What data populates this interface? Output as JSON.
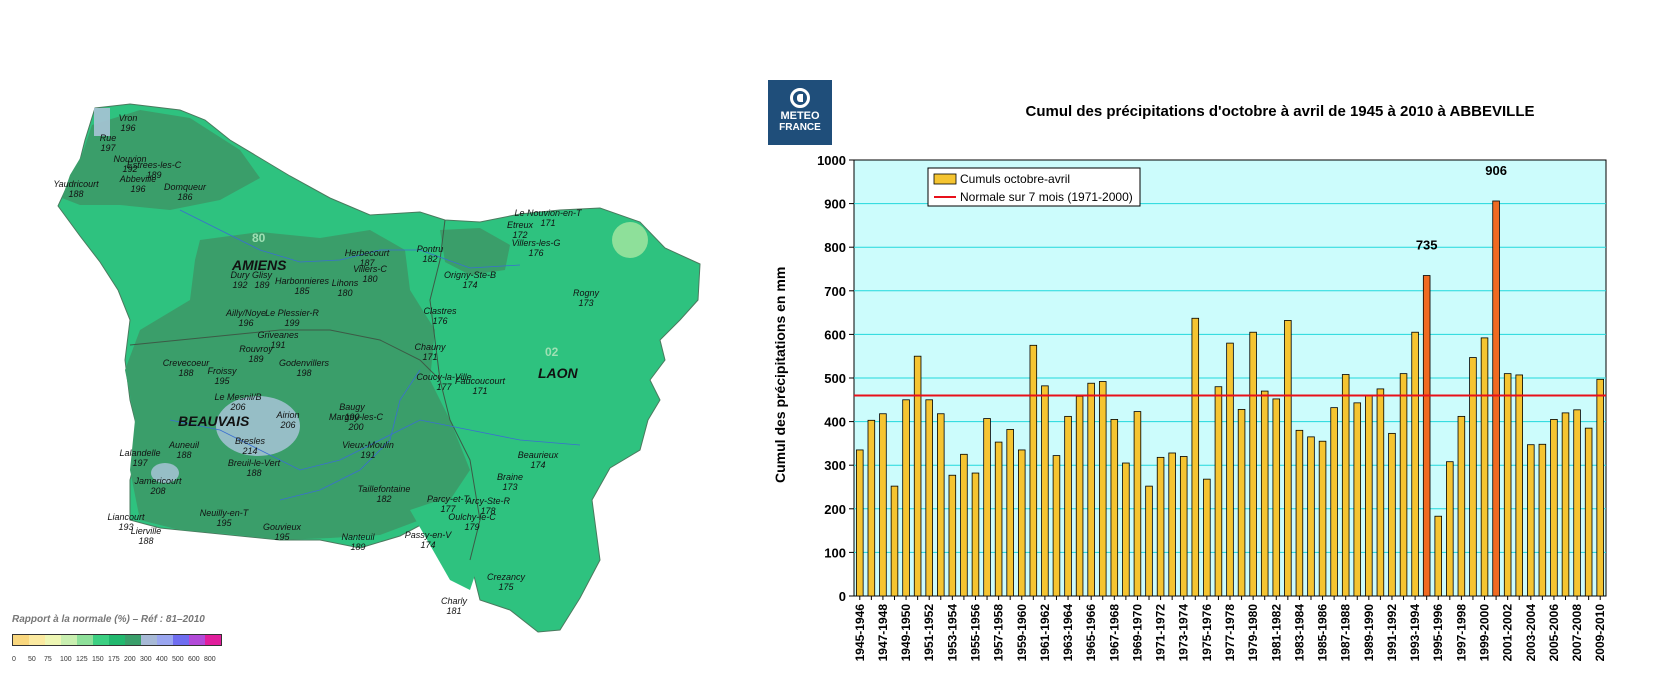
{
  "map": {
    "region_labels": [
      {
        "text": "AMIENS"
      },
      {
        "text": "BEAUVAIS"
      },
      {
        "text": "LAON"
      }
    ],
    "zone_labels": [
      "80",
      "02"
    ],
    "places": [
      {
        "name": "Vron",
        "value": "196"
      },
      {
        "name": "Rue",
        "value": "197"
      },
      {
        "name": "Nouvion",
        "value": "192"
      },
      {
        "name": "Estrees-les-C",
        "value": "189"
      },
      {
        "name": "Abbeville",
        "value": "196"
      },
      {
        "name": "Domqueur",
        "value": "186"
      },
      {
        "name": "Yaudricourt",
        "value": "188"
      },
      {
        "name": "Dury",
        "value": "192"
      },
      {
        "name": "Glisy",
        "value": "189"
      },
      {
        "name": "Harbonnieres",
        "value": "185"
      },
      {
        "name": "Lihons",
        "value": "180"
      },
      {
        "name": "Herbecourt",
        "value": "187"
      },
      {
        "name": "Villers-C",
        "value": "180"
      },
      {
        "name": "Pontru",
        "value": "182"
      },
      {
        "name": "Etreux",
        "value": "172"
      },
      {
        "name": "Le Nouvion-en-T",
        "value": "171"
      },
      {
        "name": "Villers-les-G",
        "value": "176"
      },
      {
        "name": "Origny-Ste-B",
        "value": "174"
      },
      {
        "name": "Rogny",
        "value": "173"
      },
      {
        "name": "Ailly/Noye",
        "value": "196"
      },
      {
        "name": "Le Plessier-R",
        "value": "199"
      },
      {
        "name": "Griveanes",
        "value": "191"
      },
      {
        "name": "Rouvroy",
        "value": "189"
      },
      {
        "name": "Clastres",
        "value": "176"
      },
      {
        "name": "Chauny",
        "value": "171"
      },
      {
        "name": "Crevecoeur",
        "value": "188"
      },
      {
        "name": "Froissy",
        "value": "195"
      },
      {
        "name": "Godenvillers",
        "value": "198"
      },
      {
        "name": "Coucy-la-Ville",
        "value": "177"
      },
      {
        "name": "Faucoucourt",
        "value": "171"
      },
      {
        "name": "Le Mesnil/B",
        "value": "206"
      },
      {
        "name": "Airion",
        "value": "206"
      },
      {
        "name": "Baugy",
        "value": "190"
      },
      {
        "name": "Margny-les-C",
        "value": "200"
      },
      {
        "name": "Bresles",
        "value": "214"
      },
      {
        "name": "Lalandelle",
        "value": "197"
      },
      {
        "name": "Auneuil",
        "value": "188"
      },
      {
        "name": "Breuil-le-Vert",
        "value": "188"
      },
      {
        "name": "Vieux-Moulin",
        "value": "191"
      },
      {
        "name": "Beaurieux",
        "value": "174"
      },
      {
        "name": "Braine",
        "value": "173"
      },
      {
        "name": "Jamericourt",
        "value": "208"
      },
      {
        "name": "Taillefontaine",
        "value": "182"
      },
      {
        "name": "Parcy-et-T",
        "value": "177"
      },
      {
        "name": "Arcy-Ste-R",
        "value": "178"
      },
      {
        "name": "Oulchy-le-C",
        "value": "179"
      },
      {
        "name": "Neuilly-en-T",
        "value": "195"
      },
      {
        "name": "Liancourt",
        "value": "193"
      },
      {
        "name": "Lierville",
        "value": "188"
      },
      {
        "name": "Gouvieux",
        "value": "195"
      },
      {
        "name": "Nanteuil",
        "value": "189"
      },
      {
        "name": "Passy-en-V",
        "value": "174"
      },
      {
        "name": "Crezancy",
        "value": "175"
      },
      {
        "name": "Charly",
        "value": "181"
      }
    ],
    "legend": {
      "caption": "Rapport à la normale (%) – Réf : 81–2010",
      "ticks": [
        "0",
        "50",
        "75",
        "100",
        "125",
        "150",
        "175",
        "200",
        "300",
        "400",
        "500",
        "600",
        "800"
      ],
      "colors": [
        "#f9d77e",
        "#fbe9a0",
        "#eef6b4",
        "#c9efb0",
        "#8ee09a",
        "#3ccf82",
        "#22b86e",
        "#3a9e6a",
        "#a7b9d6",
        "#9aa6f0",
        "#6f6df0",
        "#b24ad8",
        "#e01e9c"
      ]
    }
  },
  "logo": {
    "line1": "METEO",
    "line2": "FRANCE"
  },
  "chart_data": {
    "type": "bar",
    "title": "Cumul des précipitations d'octobre à avril de 1945 à 2010 à ABBEVILLE",
    "xlabel": "",
    "ylabel": "Cumul des précipitations en mm",
    "ylim": [
      0,
      1000
    ],
    "yticks": [
      0,
      100,
      200,
      300,
      400,
      500,
      600,
      700,
      800,
      900,
      1000
    ],
    "grid": true,
    "legend_position": "top-left",
    "series": [
      {
        "name": "Cumuls octobre-avril",
        "color": "#f5c431",
        "highlight_color": "#f06a22"
      },
      {
        "name": "Normale sur 7 mois (1971-2000)",
        "color": "#e8101a"
      }
    ],
    "normal_value": 460,
    "annotations": [
      {
        "category": "1994-1995",
        "text": "735"
      },
      {
        "category": "2000-2001",
        "text": "906"
      }
    ],
    "highlighted": [
      "1994-1995",
      "2000-2001"
    ],
    "categories": [
      "1945-1946",
      "1946-1947",
      "1947-1948",
      "1948-1949",
      "1949-1950",
      "1950-1951",
      "1951-1952",
      "1952-1953",
      "1953-1954",
      "1954-1955",
      "1955-1956",
      "1956-1957",
      "1957-1958",
      "1958-1959",
      "1959-1960",
      "1960-1961",
      "1961-1962",
      "1962-1963",
      "1963-1964",
      "1964-1965",
      "1965-1966",
      "1966-1967",
      "1967-1968",
      "1968-1969",
      "1969-1970",
      "1970-1971",
      "1971-1972",
      "1972-1973",
      "1973-1974",
      "1974-1975",
      "1975-1976",
      "1976-1977",
      "1977-1978",
      "1978-1979",
      "1979-1980",
      "1980-1981",
      "1981-1982",
      "1982-1983",
      "1983-1984",
      "1984-1985",
      "1985-1986",
      "1986-1987",
      "1987-1988",
      "1988-1989",
      "1989-1990",
      "1990-1991",
      "1991-1992",
      "1992-1993",
      "1993-1994",
      "1994-1995",
      "1995-1996",
      "1996-1997",
      "1997-1998",
      "1998-1999",
      "1999-2000",
      "2000-2001",
      "2001-2002",
      "2002-2003",
      "2003-2004",
      "2004-2005",
      "2005-2006",
      "2006-2007",
      "2007-2008",
      "2008-2009",
      "2009-2010"
    ],
    "tick_labels": [
      "1945-1946",
      "1947-1948",
      "1949-1950",
      "1951-1952",
      "1953-1954",
      "1955-1956",
      "1957-1958",
      "1959-1960",
      "1961-1962",
      "1963-1964",
      "1965-1966",
      "1967-1968",
      "1969-1970",
      "1971-1972",
      "1973-1974",
      "1975-1976",
      "1977-1978",
      "1979-1980",
      "1981-1982",
      "1983-1984",
      "1985-1986",
      "1987-1988",
      "1989-1990",
      "1991-1992",
      "1993-1994",
      "1995-1996",
      "1997-1998",
      "1999-2000",
      "2001-2002",
      "2003-2004",
      "2005-2006",
      "2007-2008",
      "2009-2010"
    ],
    "values": [
      335,
      403,
      418,
      252,
      450,
      550,
      450,
      418,
      277,
      325,
      282,
      407,
      353,
      382,
      335,
      575,
      482,
      322,
      412,
      458,
      488,
      492,
      405,
      305,
      423,
      252,
      318,
      328,
      320,
      637,
      268,
      480,
      580,
      428,
      605,
      470,
      452,
      632,
      380,
      365,
      355,
      432,
      508,
      443,
      460,
      475,
      373,
      510,
      605,
      735,
      183,
      308,
      412,
      547,
      592,
      906,
      510,
      507,
      347,
      348,
      405,
      420,
      427,
      385,
      497
    ]
  }
}
